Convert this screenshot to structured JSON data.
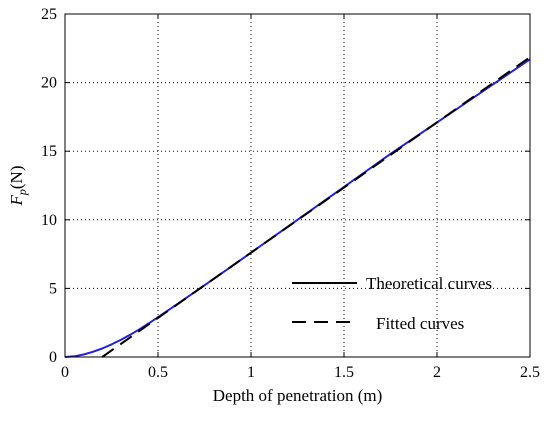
{
  "chart_data": {
    "type": "line",
    "title": "",
    "xlabel": "Depth of penetration (m)",
    "ylabel": {
      "main": "F",
      "sub": "p",
      "unit": "(N)"
    },
    "xlim": [
      0,
      2.5
    ],
    "ylim": [
      0,
      25
    ],
    "xticks": [
      0,
      0.5,
      1,
      1.5,
      2,
      2.5
    ],
    "yticks": [
      0,
      5,
      10,
      15,
      20,
      25
    ],
    "xtick_labels": [
      "0",
      "0.5",
      "1",
      "1.5",
      "2",
      "2.5"
    ],
    "ytick_labels": [
      "0",
      "5",
      "10",
      "15",
      "20",
      "25"
    ],
    "grid": true,
    "legend_position": "lower-right",
    "series": [
      {
        "name": "Theoretical curves",
        "style": "solid",
        "color": "#2020e0",
        "legend_color": "#000000",
        "x": [
          0,
          0.05,
          0.1,
          0.15,
          0.2,
          0.25,
          0.3,
          0.35,
          0.4,
          0.45,
          0.5,
          0.6,
          0.7,
          0.8,
          0.9,
          1.0,
          1.25,
          1.5,
          1.75,
          2.0,
          2.25,
          2.5
        ],
        "y": [
          0,
          0.05,
          0.18,
          0.38,
          0.62,
          0.92,
          1.25,
          1.62,
          2.02,
          2.45,
          2.9,
          3.82,
          4.76,
          5.7,
          6.65,
          7.6,
          10.0,
          12.4,
          14.8,
          17.1,
          19.4,
          21.7
        ]
      },
      {
        "name": "Fitted curves",
        "style": "dashed",
        "color": "#000000",
        "legend_color": "#000000",
        "x": [
          0.2,
          0.3,
          0.4,
          0.5,
          0.6,
          0.7,
          0.8,
          0.9,
          1.0,
          1.25,
          1.5,
          1.75,
          2.0,
          2.25,
          2.5
        ],
        "y": [
          0,
          0.95,
          1.9,
          2.85,
          3.8,
          4.75,
          5.7,
          6.65,
          7.6,
          9.98,
          12.35,
          14.73,
          17.1,
          19.48,
          21.85
        ]
      }
    ]
  }
}
